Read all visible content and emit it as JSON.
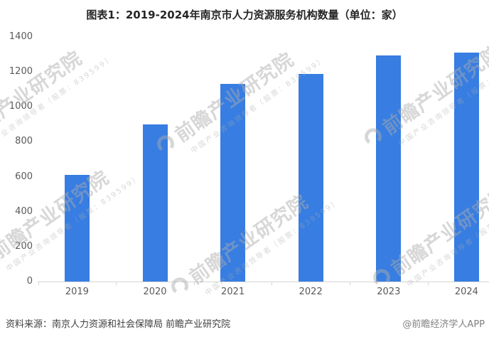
{
  "page_title": "图表1：2019-2024年南京市人力资源服务机构数量（单位：家）",
  "chart_data": {
    "type": "bar",
    "title": "图表1：2019-2024年南京市人力资源服务机构数量（单位：家）",
    "unit": "家",
    "categories": [
      "2019",
      "2020",
      "2021",
      "2022",
      "2023",
      "2024"
    ],
    "values": [
      610,
      900,
      1130,
      1190,
      1295,
      1310
    ],
    "xlabel": "",
    "ylabel": "",
    "ylim": [
      0,
      1400
    ],
    "yticks": [
      0,
      200,
      400,
      600,
      800,
      1000,
      1200,
      1400
    ],
    "grid": false,
    "legend": false,
    "bar_color": "#377DE2"
  },
  "watermark": {
    "logo": "qianzhan-swoosh-icon",
    "brand_text": "前瞻产业研究院",
    "sub_text": "中国产业咨询领导者（股票：839599）",
    "color": "#acacac"
  },
  "footer": {
    "source_text": "资料来源：南京人力资源和社会保障局  前瞻产业研究院",
    "credit_text": "@前瞻经济学人APP"
  },
  "colors": {
    "bar": "#377DE2",
    "axis": "#d4d4d4",
    "tick_label": "#595959",
    "title": "#262626",
    "source_text": "#404040",
    "credit_text": "#808080"
  }
}
